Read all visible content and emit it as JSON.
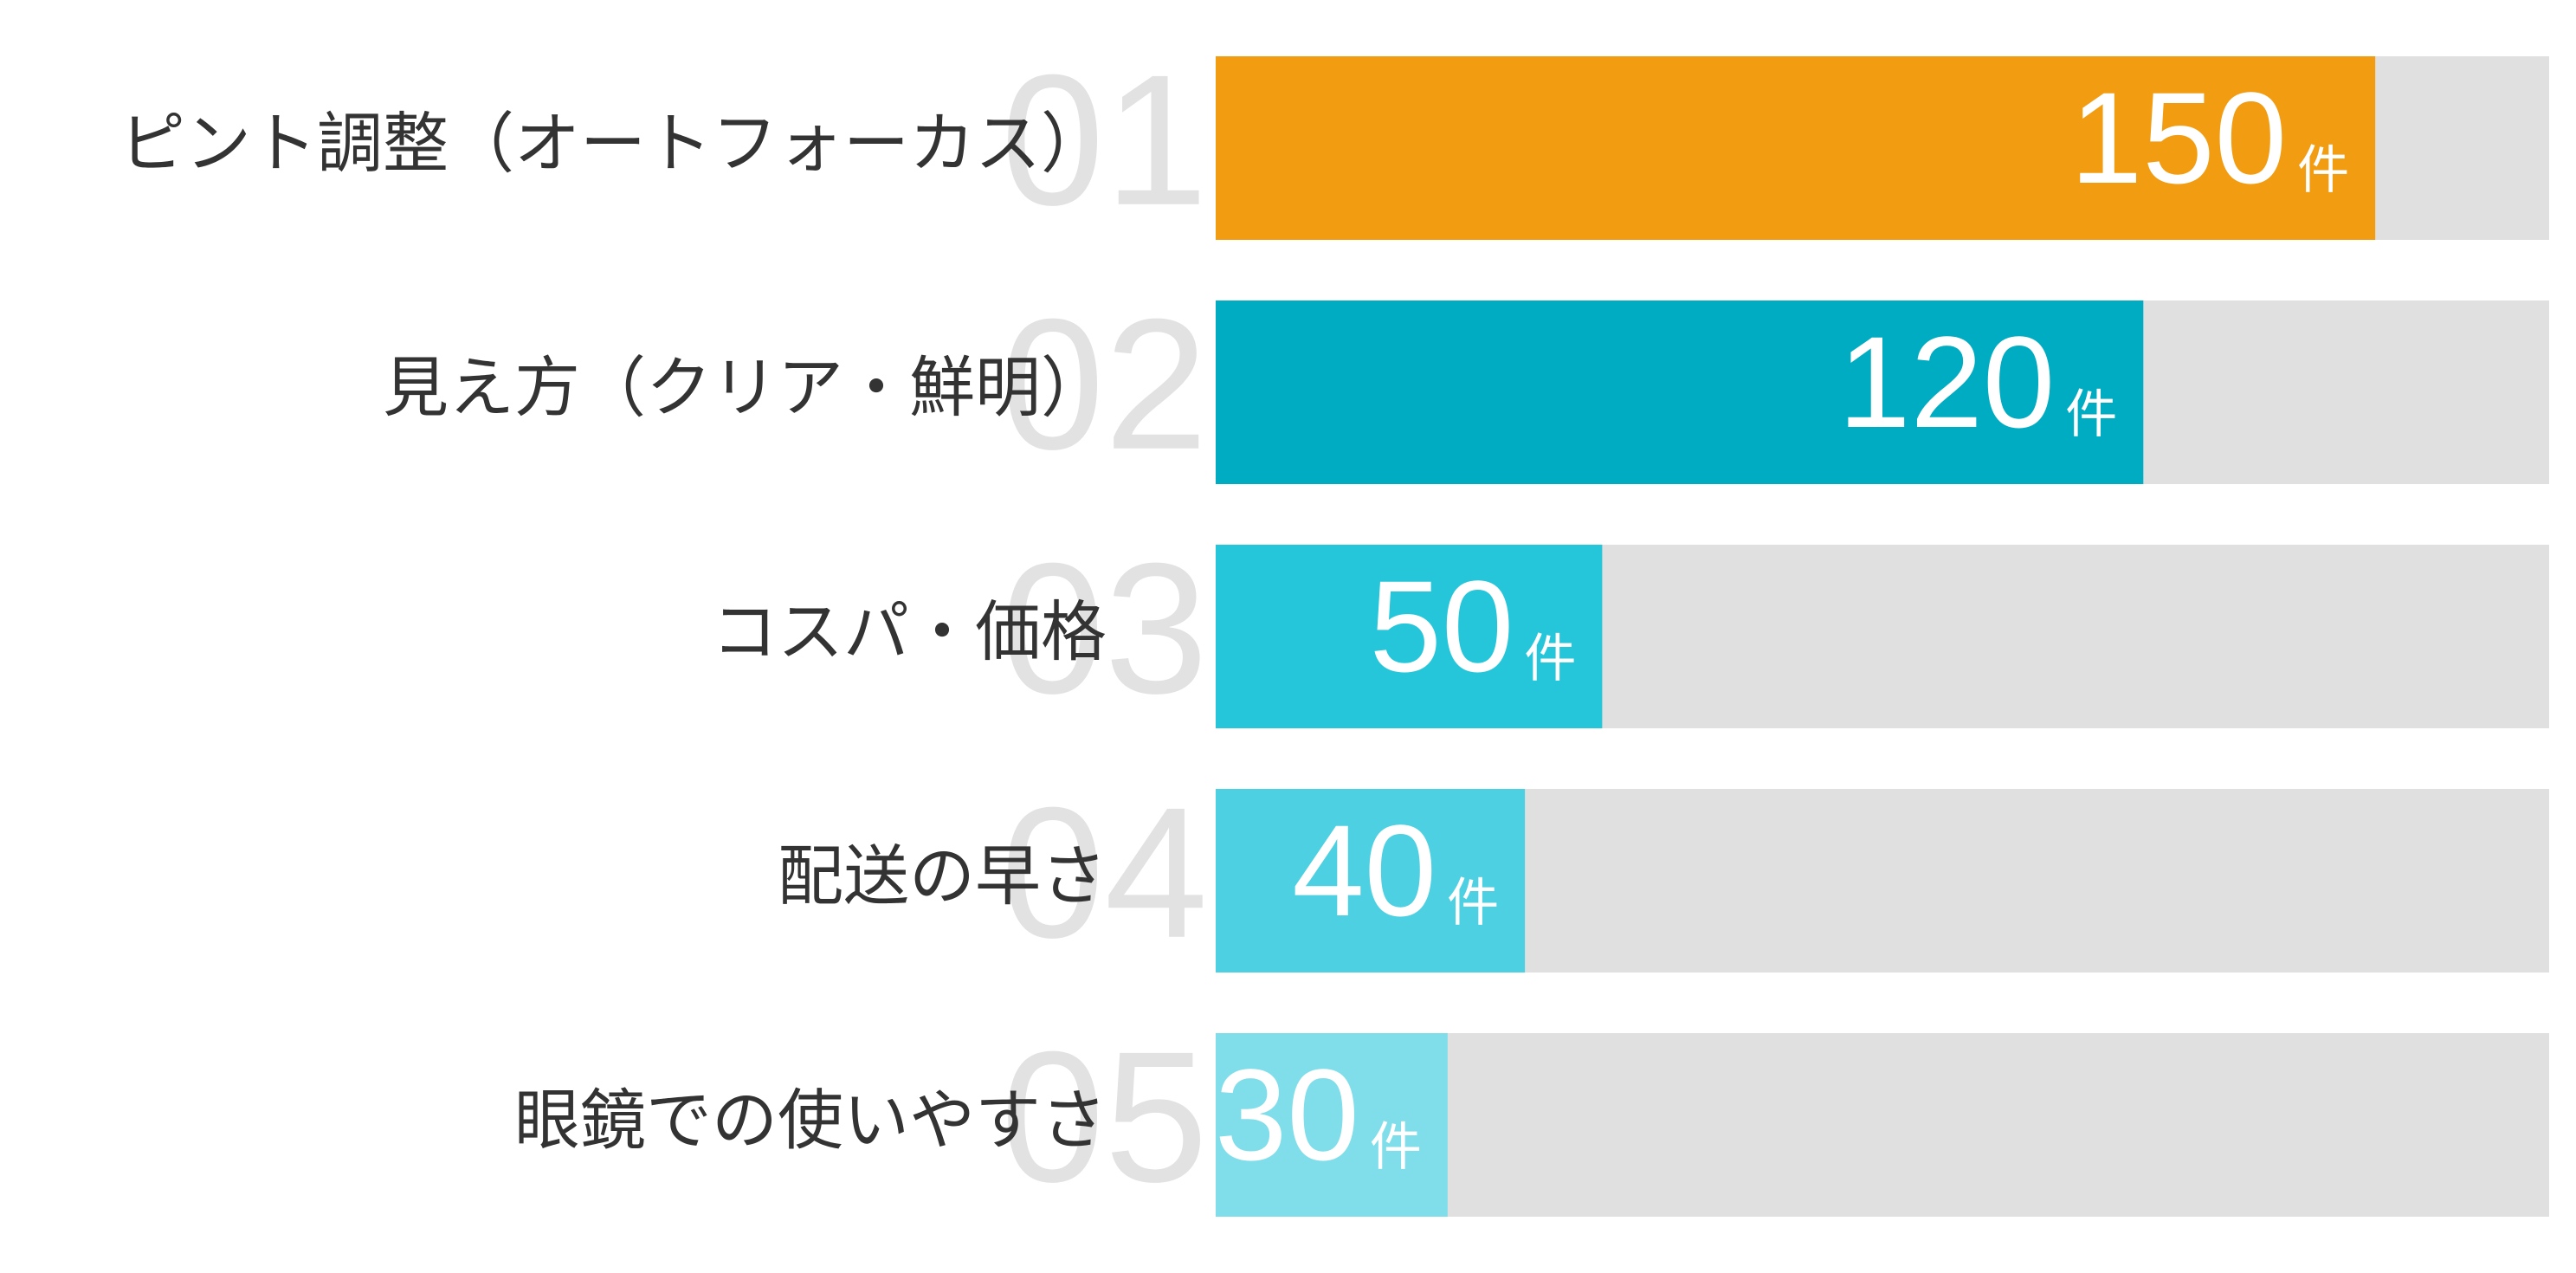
{
  "chart_data": {
    "type": "bar",
    "orientation": "horizontal",
    "categories": [
      "ピント調整（オートフォーカス）",
      "見え方（クリア・鮮明）",
      "コスパ・価格",
      "配送の早さ",
      "眼鏡での使いやすさ"
    ],
    "ranks": [
      "01",
      "02",
      "03",
      "04",
      "05"
    ],
    "values": [
      150,
      120,
      50,
      40,
      30
    ],
    "unit": "件",
    "colors": [
      "#f29c12",
      "#00acc1",
      "#26c6da",
      "#4dd0e1",
      "#80deea"
    ],
    "track_color": "#e0e0e0",
    "xlim": [
      0,
      172.5
    ]
  }
}
